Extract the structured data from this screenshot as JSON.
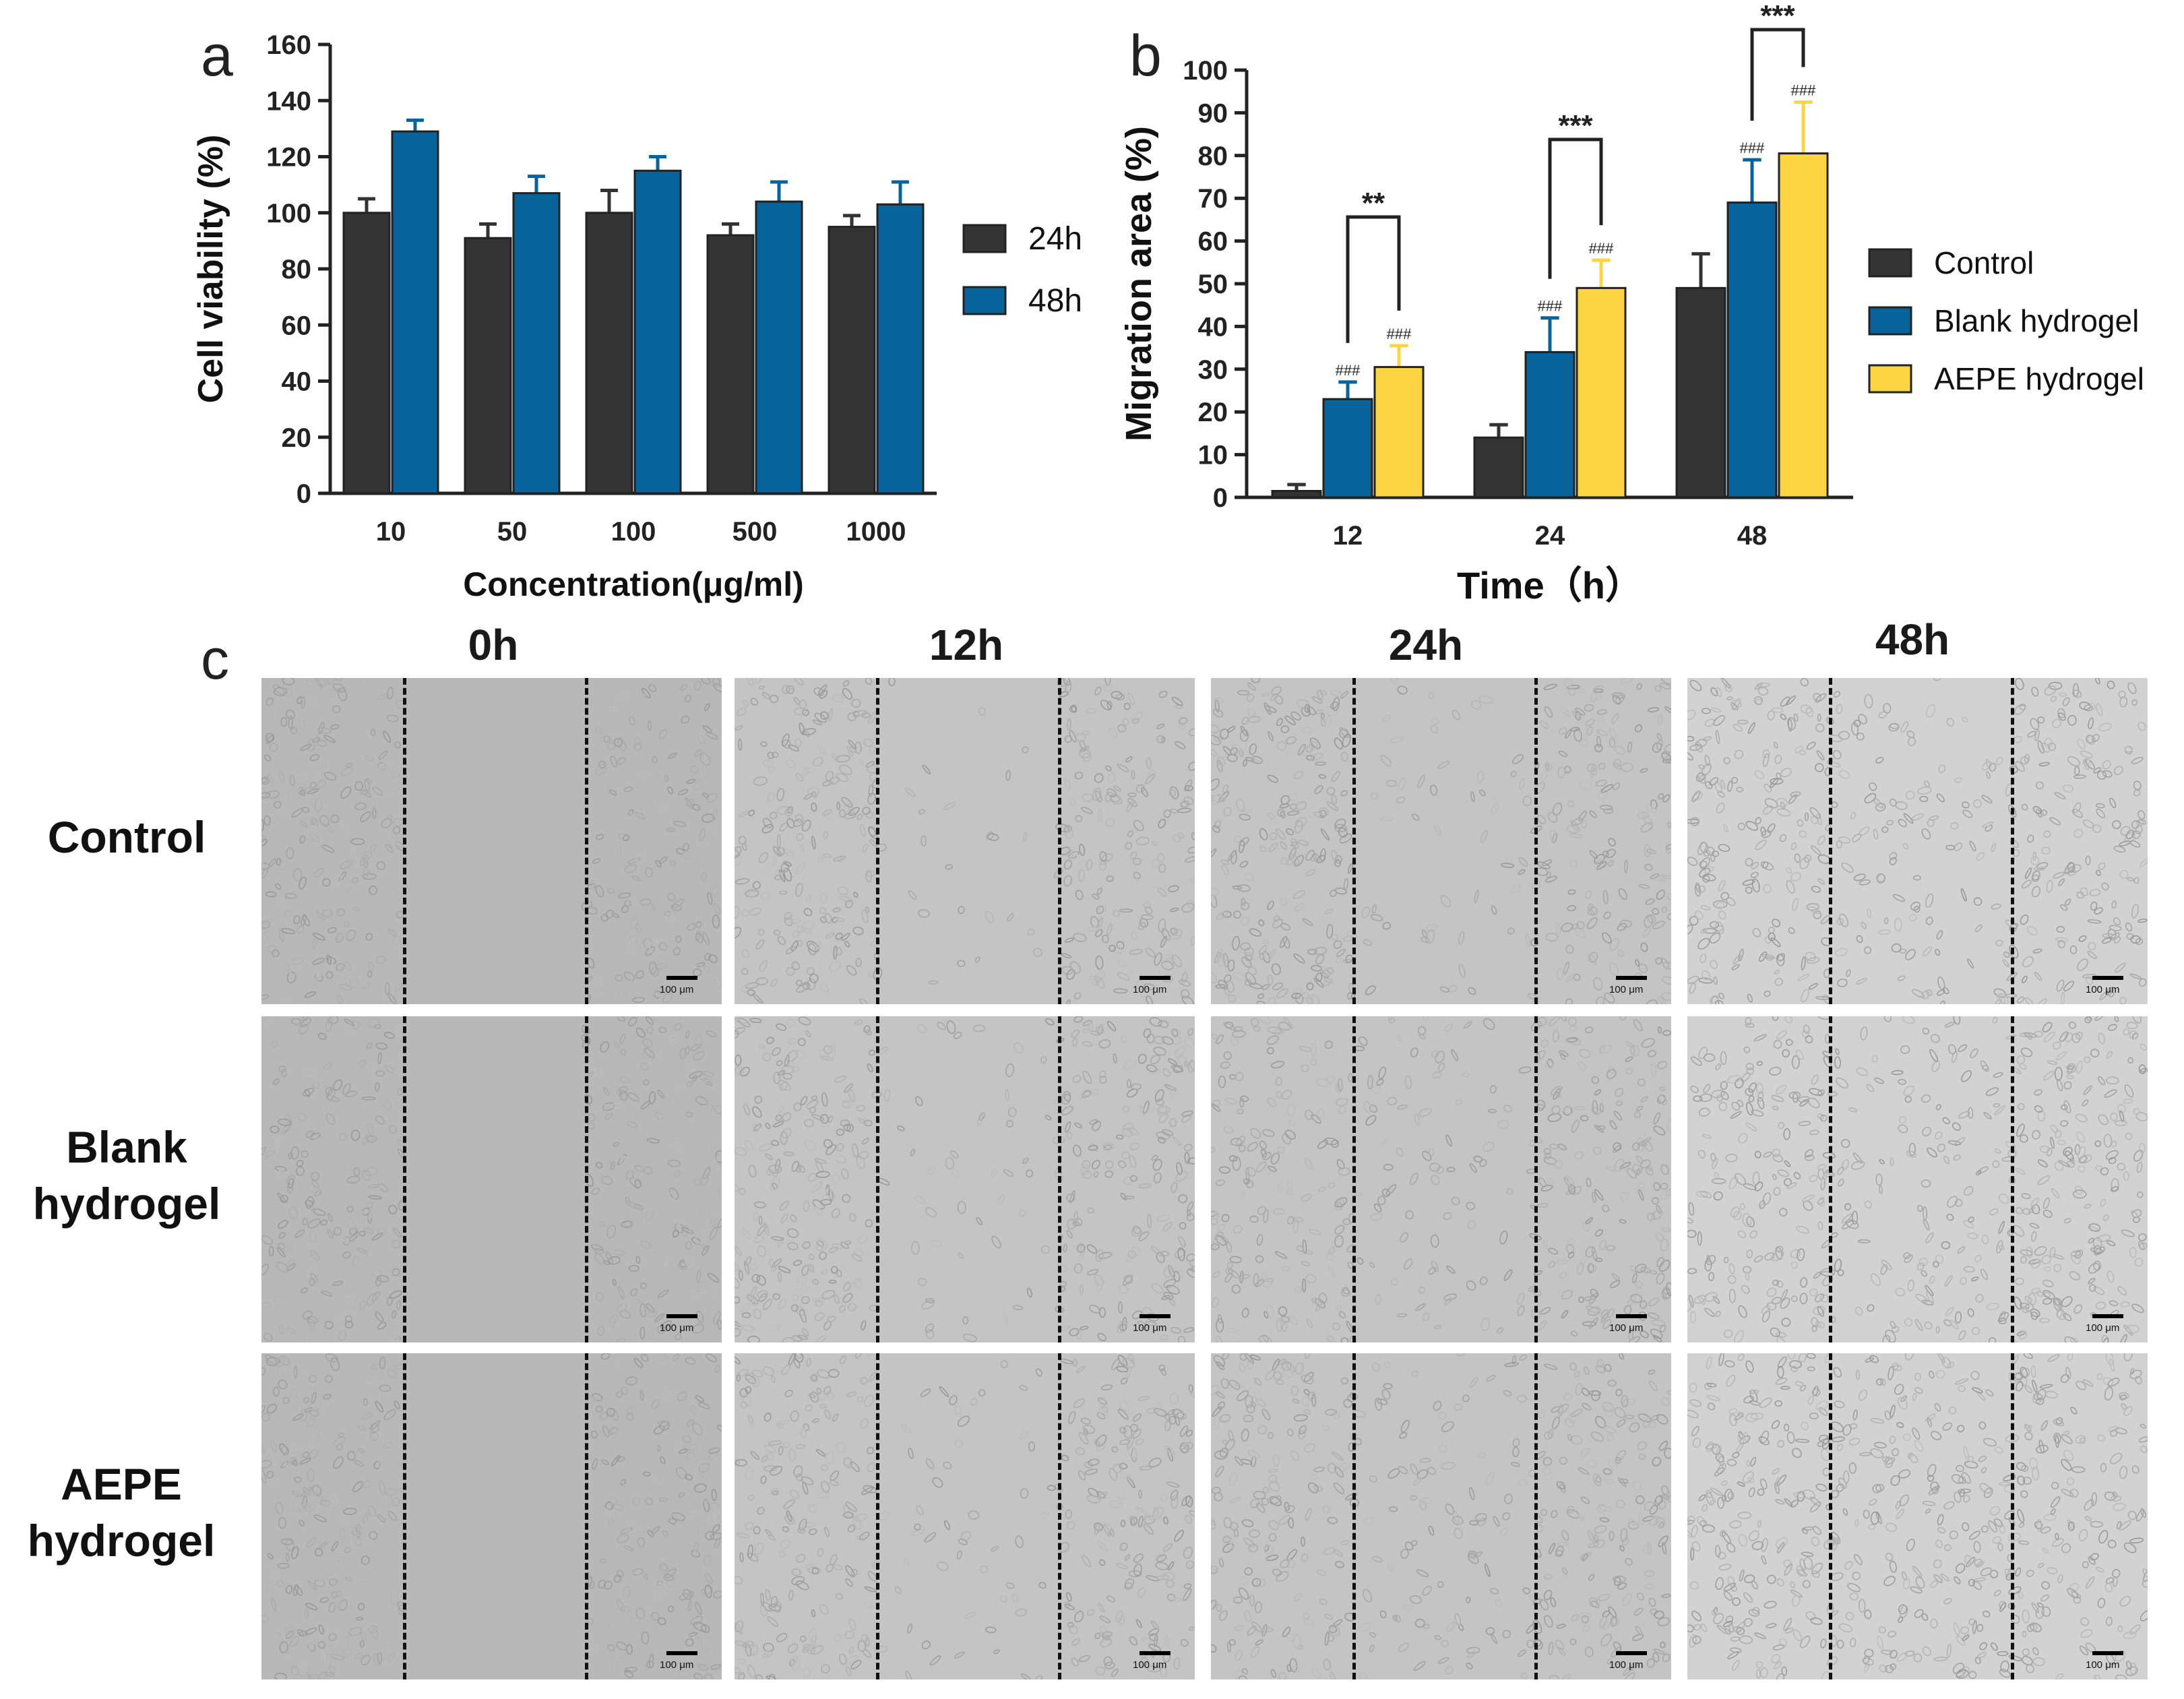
{
  "chart_data": [
    {
      "panel": "a",
      "type": "bar",
      "categories": [
        "10",
        "50",
        "100",
        "500",
        "1000"
      ],
      "series": [
        {
          "name": "24h",
          "color": "#333333",
          "values": [
            100,
            91,
            100,
            92,
            95
          ],
          "errors": [
            5,
            5,
            8,
            4,
            4
          ]
        },
        {
          "name": "48h",
          "color": "#07639a",
          "values": [
            129,
            107,
            115,
            104,
            103
          ],
          "errors": [
            4,
            6,
            5,
            7,
            8
          ]
        }
      ],
      "xlabel": "Concentration(μg/ml)",
      "ylabel": "Cell viability (%)",
      "ylim": [
        0,
        160
      ],
      "yticks": [
        "0",
        "20",
        "40",
        "60",
        "80",
        "100",
        "120",
        "140",
        "160"
      ],
      "legend": "right",
      "grid": false
    },
    {
      "panel": "b",
      "type": "bar",
      "categories": [
        "12",
        "24",
        "48"
      ],
      "series": [
        {
          "name": "Control",
          "color": "#333333",
          "values": [
            1.5,
            14,
            49
          ],
          "errors": [
            1.5,
            3,
            8
          ],
          "marks": [
            "",
            "",
            ""
          ]
        },
        {
          "name": "Blank hydrogel",
          "color": "#07639a",
          "values": [
            23,
            34,
            69
          ],
          "errors": [
            4,
            8,
            10
          ],
          "marks": [
            "###",
            "###",
            "###"
          ]
        },
        {
          "name": "AEPE hydrogel",
          "color": "#fdd441",
          "values": [
            30.5,
            49,
            80.5
          ],
          "errors": [
            5,
            6.5,
            12
          ],
          "marks": [
            "###",
            "###",
            "###"
          ]
        }
      ],
      "significance": [
        {
          "category": "12",
          "label": "**"
        },
        {
          "category": "24",
          "label": "***"
        },
        {
          "category": "48",
          "label": "***"
        }
      ],
      "xlabel": "Time（h）",
      "ylabel": "Migration area (%)",
      "ylim": [
        0,
        100
      ],
      "yticks": [
        "0",
        "10",
        "20",
        "30",
        "40",
        "50",
        "60",
        "70",
        "80",
        "90",
        "100"
      ],
      "legend": "right",
      "grid": false
    }
  ],
  "labels": {
    "a": "a",
    "b": "b",
    "c": "c"
  },
  "panel_c": {
    "columns": [
      "0h",
      "12h",
      "24h",
      "48h"
    ],
    "rows": [
      {
        "line1": "Control",
        "line2": ""
      },
      {
        "line1": "Blank",
        "line2": "hydrogel"
      },
      {
        "line1": "AEPE",
        "line2": "hydrogel"
      }
    ],
    "scale_text": "100 μm",
    "closure": [
      0,
      0.12,
      0.22,
      0.45
    ]
  }
}
